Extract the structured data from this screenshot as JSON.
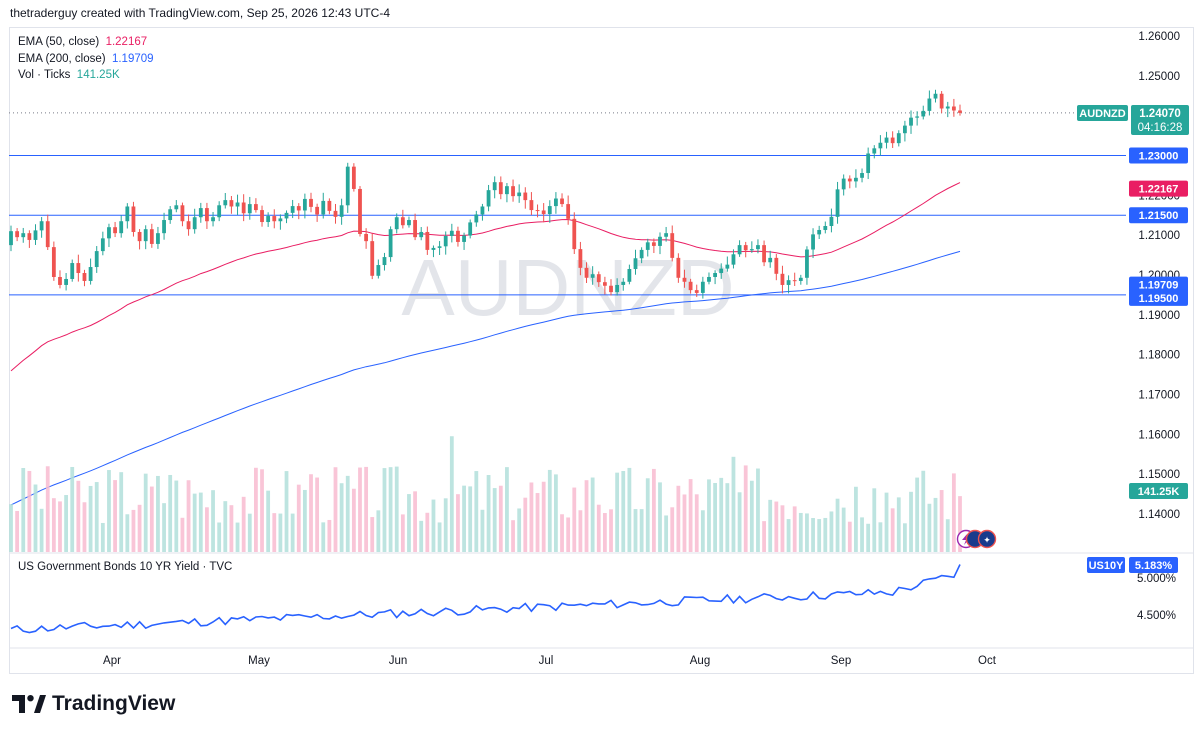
{
  "header": {
    "text": "thetraderguy created with TradingView.com, Sep 25, 2026 12:43 UTC-4"
  },
  "legend": {
    "ema50_label": "EMA (50, close)",
    "ema50_value": "1.22167",
    "ema200_label": "EMA (200, close)",
    "ema200_value": "1.19709",
    "vol_label": "Vol · Ticks",
    "vol_value": "141.25K"
  },
  "watermark": "AUDNZD",
  "badges": {
    "symbol": "AUDNZD",
    "last_price": "1.24070",
    "countdown": "04:16:28",
    "level_123": "1.23000",
    "ema50": "1.22167",
    "level_1215": "1.21500",
    "ema200": "1.19709",
    "level_1195": "1.19500",
    "volume": "141.25K",
    "us10y_symbol": "US10Y",
    "us10y_value": "5.183%"
  },
  "sub_legend": "US Government Bonds 10 YR Yield · TVC",
  "footer": {
    "brand": "TradingView"
  },
  "colors": {
    "up": "#26a69a",
    "down": "#ef5350",
    "ema50": "#e91e63",
    "ema200": "#2962ff",
    "level": "#2962ff",
    "yield": "#2962ff"
  },
  "chart_data": {
    "type": "candlestick",
    "symbol": "AUDNZD",
    "price_ticks": [
      "1.26000",
      "1.25000",
      "1.24000",
      "1.23000",
      "1.22000",
      "1.21000",
      "1.20000",
      "1.19000",
      "1.18000",
      "1.17000",
      "1.16000",
      "1.15000",
      "1.14000"
    ],
    "price_range": [
      1.1365,
      1.2627
    ],
    "x_ticks": [
      "Apr",
      "May",
      "Jun",
      "Jul",
      "Aug",
      "Sep",
      "Oct"
    ],
    "horizontal_levels": [
      1.23,
      1.215,
      1.195
    ],
    "last_price": 1.2407,
    "closes": [
      1.211,
      1.2095,
      1.2105,
      1.2088,
      1.2112,
      1.2135,
      1.207,
      1.1995,
      1.1975,
      1.199,
      1.203,
      1.2005,
      1.1985,
      1.202,
      1.206,
      1.2092,
      1.212,
      1.2105,
      1.2135,
      1.2172,
      1.2108,
      1.2085,
      1.2115,
      1.2078,
      1.2105,
      1.2138,
      1.2165,
      1.2175,
      1.2135,
      1.2115,
      1.2145,
      1.2168,
      1.2135,
      1.2145,
      1.2175,
      1.2188,
      1.2172,
      1.2182,
      1.2155,
      1.2178,
      1.2163,
      1.2133,
      1.2148,
      1.2135,
      1.2142,
      1.2156,
      1.2173,
      1.2162,
      1.2191,
      1.2171,
      1.2152,
      1.2186,
      1.2161,
      1.2146,
      1.2175,
      1.2272,
      1.2216,
      1.2103,
      1.2085,
      1.1998,
      1.2025,
      1.2045,
      1.2115,
      1.2145,
      1.2125,
      1.2138,
      1.2095,
      1.2108,
      1.2063,
      1.2068,
      1.2072,
      1.2098,
      1.2111,
      1.2083,
      1.2099,
      1.2132,
      1.2152,
      1.2172,
      1.2213,
      1.2233,
      1.2203,
      1.2223,
      1.2198,
      1.2207,
      1.2188,
      1.2163,
      1.2162,
      1.2153,
      1.2173,
      1.2192,
      1.2178,
      1.2141,
      1.2065,
      1.2018,
      1.1993,
      1.2002,
      1.1982,
      1.1973,
      1.1957,
      1.1975,
      1.1983,
      1.2015,
      1.2042,
      1.2063,
      1.2082,
      1.2073,
      1.2096,
      1.2105,
      1.2043,
      1.1993,
      1.1983,
      1.1962,
      1.1955,
      1.1983,
      1.1995,
      1.2005,
      1.2016,
      1.2026,
      1.2052,
      1.2075,
      1.2062,
      1.2065,
      1.2075,
      1.2032,
      1.2043,
      1.2003,
      1.1975,
      1.1987,
      1.1985,
      1.1993,
      1.2064,
      1.2102,
      1.2113,
      1.2123,
      1.2146,
      1.2215,
      1.2242,
      1.2235,
      1.2244,
      1.2256,
      1.2305,
      1.2318,
      1.2332,
      1.2345,
      1.2331,
      1.2356,
      1.2375,
      1.2395,
      1.2398,
      1.2412,
      1.2443,
      1.2455,
      1.2418,
      1.2423,
      1.2413,
      1.2407
    ],
    "series": [
      {
        "name": "EMA (50, close)",
        "last": 1.22167
      },
      {
        "name": "EMA (200, close)",
        "last": 1.19709
      },
      {
        "name": "Vol · Ticks",
        "last": "141.25K"
      },
      {
        "name": "US Government Bonds 10 YR Yield · TVC",
        "last": 5.183
      }
    ],
    "yield_ticks": [
      "5.000%",
      "4.500%"
    ]
  }
}
